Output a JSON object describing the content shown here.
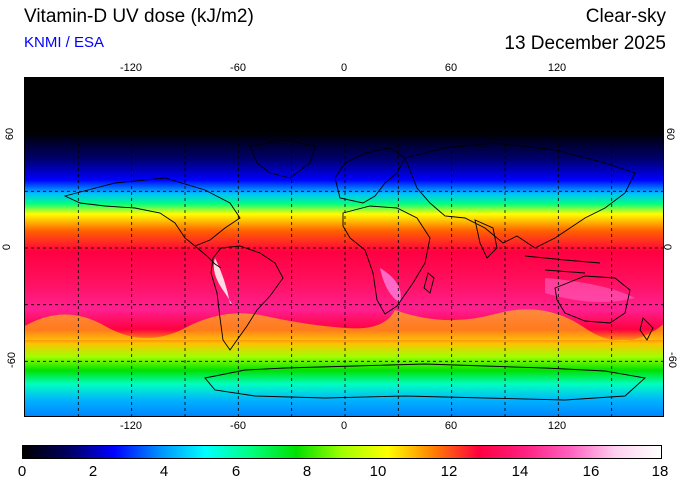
{
  "header": {
    "title": "Vitamin-D UV dose (kJ/m2)",
    "source": "KNMI / ESA",
    "condition": "Clear-sky",
    "date": "13 December 2025"
  },
  "map": {
    "lon_ticks": [
      "-120",
      "-60",
      "0",
      "60",
      "120"
    ],
    "lon_values": [
      -120,
      -60,
      0,
      60,
      120
    ],
    "lat_ticks": [
      "60",
      "0",
      "-60"
    ],
    "lat_values": [
      60,
      0,
      -60
    ],
    "lon_range": [
      -180,
      180
    ],
    "lat_range": [
      90,
      -90
    ],
    "grid": "dashed every 30 degrees",
    "colors": {
      "dark": "#000000",
      "coast": "#000000"
    }
  },
  "colorbar": {
    "labels": [
      "0",
      "2",
      "4",
      "6",
      "8",
      "10",
      "12",
      "14",
      "16",
      "18"
    ],
    "min": 0,
    "max": 18,
    "stops": [
      "#000000",
      "#000060",
      "#0000ff",
      "#0090ff",
      "#00ffff",
      "#00ff80",
      "#00e000",
      "#a0ff00",
      "#ffff00",
      "#ff8000",
      "#ff0040",
      "#ff2080",
      "#ff60c0",
      "#ffd0f0",
      "#ffffff"
    ]
  }
}
